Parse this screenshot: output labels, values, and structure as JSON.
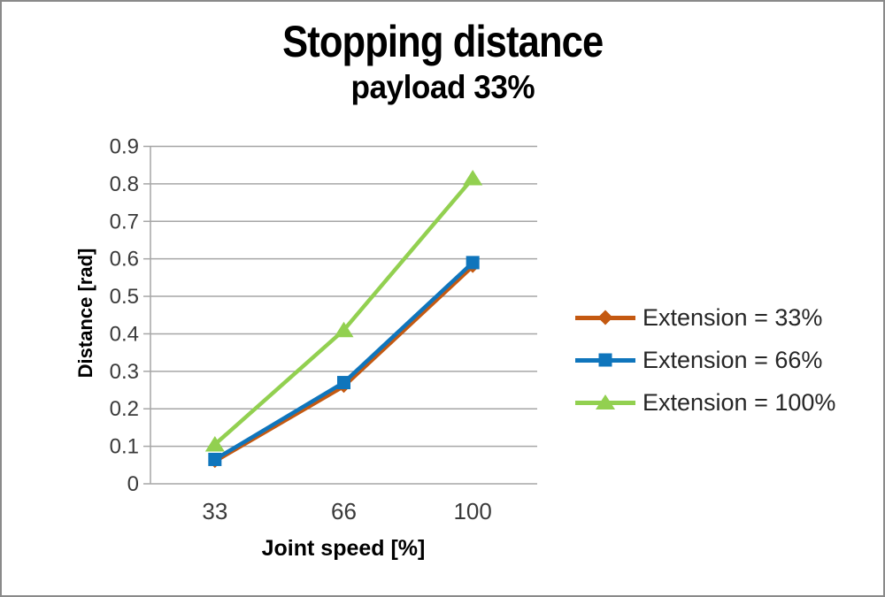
{
  "frame": {
    "background": "#ffffff",
    "border_color": "#8a8a8a"
  },
  "chart_data": {
    "type": "line",
    "title": "Stopping distance",
    "subtitle": "payload 33%",
    "xlabel": "Joint speed [%]",
    "ylabel": "Distance [rad]",
    "categories": [
      "33",
      "66",
      "100"
    ],
    "series": [
      {
        "name": "Extension = 33%",
        "color": "#C45911",
        "marker": "diamond",
        "values": [
          0.06,
          0.26,
          0.58
        ]
      },
      {
        "name": "Extension = 66%",
        "color": "#0F75BC",
        "marker": "square",
        "values": [
          0.065,
          0.27,
          0.59
        ]
      },
      {
        "name": "Extension = 100%",
        "color": "#92D050",
        "marker": "triangle",
        "values": [
          0.105,
          0.41,
          0.815
        ]
      }
    ],
    "y_ticks": [
      "0",
      "0.1",
      "0.2",
      "0.3",
      "0.4",
      "0.5",
      "0.6",
      "0.7",
      "0.8",
      "0.9"
    ],
    "ylim": [
      0,
      0.9
    ],
    "grid": "horizontal",
    "gridline_color": "#A6A6A6",
    "axis_line_color": "#A6A6A6",
    "tick_text_color": "#3a3a3a",
    "legend_position": "right"
  }
}
